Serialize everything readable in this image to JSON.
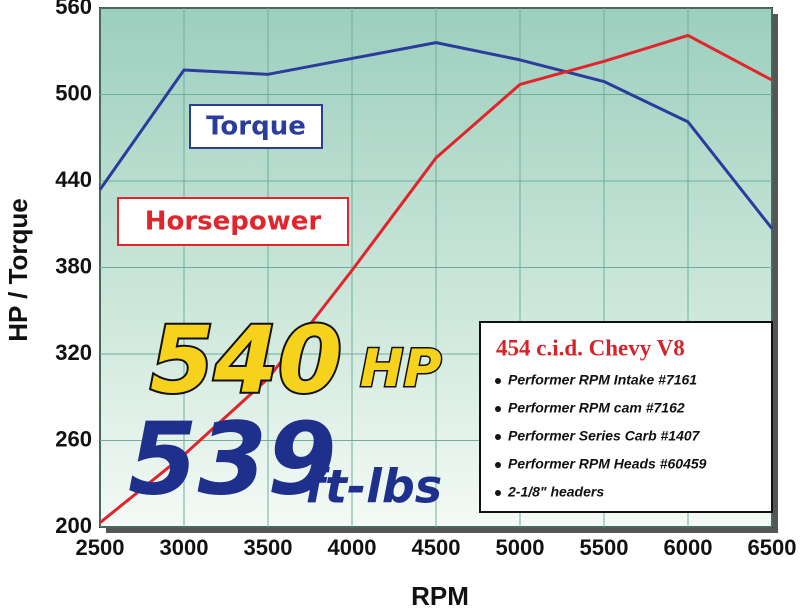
{
  "chart_data": {
    "type": "line",
    "xlabel": "RPM",
    "ylabel": "HP / Torque",
    "x": [
      2500,
      3000,
      3500,
      4000,
      4500,
      5000,
      5500,
      6000,
      6500
    ],
    "xlim": [
      2500,
      6500
    ],
    "xticks": [
      2500,
      3000,
      3500,
      4000,
      4500,
      5000,
      5500,
      6000,
      6500
    ],
    "ylim": [
      200,
      560
    ],
    "yticks": [
      200,
      260,
      320,
      380,
      440,
      500,
      560
    ],
    "grid": true,
    "series": [
      {
        "name": "Torque",
        "color": "#2b3c9c",
        "values": [
          434,
          517,
          514,
          525,
          536,
          524,
          509,
          481,
          407
        ]
      },
      {
        "name": "Horsepower",
        "color": "#e0262c",
        "values": [
          203,
          250,
          303,
          378,
          456,
          507,
          523,
          541,
          510
        ]
      }
    ],
    "annotations": {
      "hp": {
        "value": "540",
        "unit": "HP"
      },
      "torque": {
        "value": "539",
        "unit": "ft-lbs"
      }
    },
    "info_box": {
      "title": "454 c.i.d. Chevy V8",
      "items": [
        "Performer RPM Intake #7161",
        "Performer RPM cam #7162",
        "Performer Series Carb #1407",
        "Performer RPM Heads #60459",
        "2-1/8\" headers"
      ]
    }
  }
}
